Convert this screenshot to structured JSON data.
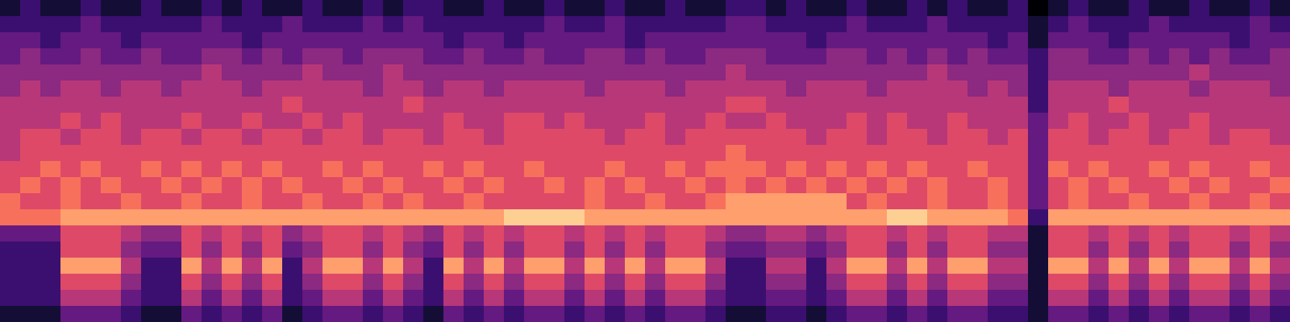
{
  "chart_data": {
    "type": "heatmap",
    "color": "magma",
    "color_range": [
      0,
      10
    ],
    "tick_labels": false,
    "cells": [
      [
        1,
        2,
        1,
        1,
        2,
        1,
        1,
        2,
        1,
        1,
        2,
        1,
        2,
        1,
        1,
        2,
        1,
        1,
        2,
        1,
        2,
        2,
        1,
        1,
        2,
        1,
        1,
        2,
        1,
        1,
        2,
        1,
        1,
        2,
        1,
        1,
        2,
        2,
        1,
        2,
        1,
        1,
        2,
        1,
        1,
        2,
        1,
        2,
        1,
        1,
        2,
        0,
        1,
        2,
        1,
        1,
        2,
        1,
        1,
        2,
        1,
        1,
        2,
        1
      ],
      [
        2,
        2,
        2,
        2,
        3,
        2,
        2,
        2,
        2,
        2,
        3,
        2,
        2,
        2,
        3,
        2,
        2,
        2,
        3,
        2,
        3,
        2,
        2,
        2,
        2,
        2,
        2,
        3,
        2,
        2,
        3,
        2,
        2,
        2,
        2,
        2,
        3,
        3,
        2,
        2,
        2,
        2,
        3,
        2,
        2,
        2,
        3,
        2,
        2,
        2,
        2,
        1,
        2,
        3,
        2,
        2,
        2,
        3,
        2,
        2,
        2,
        2,
        3,
        2
      ],
      [
        3,
        3,
        2,
        3,
        3,
        3,
        2,
        3,
        3,
        3,
        3,
        3,
        2,
        3,
        3,
        3,
        3,
        3,
        3,
        3,
        3,
        3,
        2,
        3,
        3,
        2,
        3,
        3,
        3,
        3,
        3,
        2,
        3,
        3,
        3,
        3,
        3,
        3,
        3,
        3,
        2,
        3,
        3,
        3,
        3,
        3,
        3,
        3,
        3,
        2,
        3,
        1,
        3,
        3,
        3,
        2,
        3,
        3,
        3,
        3,
        3,
        2,
        3,
        3
      ],
      [
        3,
        4,
        3,
        3,
        4,
        3,
        3,
        4,
        3,
        3,
        4,
        4,
        3,
        4,
        3,
        4,
        4,
        3,
        4,
        4,
        4,
        3,
        3,
        4,
        3,
        3,
        4,
        3,
        3,
        4,
        4,
        3,
        4,
        3,
        3,
        4,
        4,
        4,
        3,
        3,
        3,
        4,
        4,
        3,
        4,
        3,
        4,
        3,
        4,
        3,
        3,
        2,
        4,
        4,
        3,
        3,
        4,
        3,
        4,
        3,
        4,
        3,
        3,
        4
      ],
      [
        4,
        4,
        4,
        4,
        4,
        4,
        4,
        4,
        4,
        4,
        5,
        4,
        4,
        4,
        4,
        5,
        4,
        4,
        4,
        5,
        4,
        4,
        4,
        4,
        4,
        4,
        4,
        4,
        4,
        4,
        4,
        4,
        4,
        4,
        4,
        4,
        5,
        4,
        4,
        4,
        4,
        4,
        4,
        4,
        4,
        4,
        5,
        4,
        4,
        4,
        4,
        2,
        4,
        4,
        4,
        4,
        4,
        4,
        4,
        5,
        4,
        4,
        4,
        4
      ],
      [
        4,
        5,
        4,
        5,
        5,
        4,
        5,
        5,
        4,
        5,
        5,
        5,
        4,
        5,
        5,
        5,
        5,
        5,
        4,
        5,
        5,
        4,
        5,
        5,
        4,
        5,
        5,
        5,
        5,
        4,
        5,
        5,
        5,
        4,
        5,
        5,
        5,
        5,
        5,
        4,
        5,
        5,
        5,
        4,
        5,
        5,
        5,
        5,
        4,
        5,
        4,
        2,
        5,
        5,
        5,
        4,
        5,
        5,
        5,
        4,
        5,
        5,
        5,
        4
      ],
      [
        5,
        5,
        5,
        5,
        5,
        5,
        5,
        5,
        5,
        5,
        5,
        5,
        5,
        5,
        6,
        5,
        5,
        5,
        5,
        5,
        6,
        5,
        5,
        5,
        5,
        5,
        5,
        5,
        5,
        5,
        5,
        5,
        5,
        5,
        5,
        5,
        6,
        6,
        5,
        5,
        5,
        5,
        5,
        5,
        5,
        5,
        5,
        5,
        5,
        5,
        5,
        2,
        5,
        5,
        5,
        6,
        5,
        5,
        5,
        5,
        5,
        5,
        5,
        5
      ],
      [
        5,
        5,
        5,
        6,
        5,
        6,
        5,
        5,
        5,
        6,
        5,
        5,
        6,
        5,
        5,
        6,
        5,
        6,
        5,
        5,
        5,
        5,
        6,
        5,
        5,
        6,
        6,
        5,
        6,
        5,
        5,
        5,
        6,
        5,
        5,
        6,
        5,
        5,
        6,
        5,
        5,
        5,
        6,
        5,
        6,
        5,
        5,
        6,
        5,
        5,
        5,
        3,
        5,
        6,
        5,
        5,
        6,
        5,
        5,
        6,
        5,
        5,
        5,
        5
      ],
      [
        5,
        6,
        6,
        5,
        6,
        6,
        5,
        6,
        6,
        5,
        6,
        6,
        5,
        6,
        6,
        5,
        6,
        6,
        5,
        6,
        6,
        5,
        6,
        6,
        5,
        6,
        6,
        6,
        6,
        6,
        5,
        6,
        6,
        5,
        6,
        6,
        6,
        6,
        6,
        6,
        5,
        6,
        6,
        5,
        6,
        6,
        5,
        6,
        6,
        5,
        6,
        3,
        6,
        6,
        5,
        6,
        6,
        5,
        6,
        6,
        5,
        6,
        6,
        5
      ],
      [
        5,
        6,
        6,
        6,
        6,
        6,
        6,
        6,
        6,
        6,
        6,
        6,
        6,
        6,
        6,
        6,
        6,
        6,
        6,
        6,
        6,
        6,
        6,
        6,
        6,
        6,
        6,
        6,
        6,
        6,
        6,
        6,
        6,
        6,
        6,
        6,
        7,
        6,
        6,
        6,
        6,
        6,
        6,
        6,
        6,
        6,
        6,
        6,
        6,
        6,
        6,
        3,
        6,
        6,
        6,
        6,
        6,
        6,
        6,
        6,
        6,
        6,
        6,
        6
      ],
      [
        6,
        6,
        7,
        6,
        7,
        6,
        6,
        7,
        6,
        7,
        6,
        7,
        6,
        7,
        6,
        6,
        7,
        6,
        7,
        6,
        6,
        7,
        6,
        7,
        6,
        6,
        7,
        6,
        6,
        6,
        7,
        6,
        6,
        7,
        6,
        7,
        7,
        7,
        6,
        7,
        6,
        7,
        6,
        7,
        6,
        7,
        6,
        6,
        7,
        6,
        6,
        3,
        7,
        6,
        7,
        6,
        6,
        7,
        6,
        7,
        6,
        6,
        7,
        6
      ],
      [
        6,
        7,
        6,
        7,
        6,
        7,
        6,
        6,
        7,
        6,
        7,
        6,
        7,
        6,
        7,
        6,
        6,
        7,
        6,
        7,
        6,
        6,
        7,
        6,
        7,
        6,
        6,
        7,
        6,
        7,
        6,
        7,
        6,
        6,
        7,
        6,
        7,
        6,
        7,
        6,
        7,
        6,
        7,
        6,
        7,
        6,
        7,
        6,
        6,
        7,
        6,
        3,
        6,
        7,
        6,
        7,
        6,
        6,
        7,
        6,
        7,
        6,
        6,
        7
      ],
      [
        7,
        6,
        6,
        7,
        6,
        6,
        7,
        6,
        6,
        7,
        6,
        6,
        7,
        6,
        6,
        7,
        6,
        6,
        7,
        6,
        7,
        6,
        6,
        7,
        6,
        6,
        6,
        6,
        6,
        7,
        6,
        6,
        7,
        6,
        6,
        7,
        8,
        8,
        8,
        8,
        8,
        8,
        6,
        7,
        6,
        6,
        7,
        6,
        6,
        7,
        6,
        3,
        6,
        7,
        6,
        6,
        7,
        6,
        6,
        7,
        6,
        6,
        7,
        6
      ],
      [
        7,
        7,
        7,
        8,
        8,
        8,
        8,
        8,
        8,
        8,
        8,
        8,
        8,
        8,
        8,
        8,
        8,
        8,
        8,
        8,
        8,
        8,
        8,
        8,
        8,
        9,
        9,
        9,
        9,
        8,
        8,
        8,
        8,
        8,
        8,
        8,
        8,
        8,
        8,
        8,
        8,
        8,
        8,
        8,
        9,
        9,
        8,
        8,
        8,
        8,
        7,
        2,
        8,
        8,
        8,
        8,
        8,
        8,
        8,
        8,
        8,
        8,
        8,
        8
      ],
      [
        3,
        3,
        3,
        6,
        6,
        6,
        5,
        4,
        4,
        6,
        5,
        6,
        5,
        6,
        4,
        5,
        6,
        6,
        5,
        6,
        5,
        4,
        6,
        5,
        6,
        5,
        6,
        6,
        5,
        6,
        5,
        6,
        5,
        6,
        6,
        5,
        4,
        4,
        5,
        5,
        4,
        5,
        6,
        6,
        5,
        6,
        5,
        6,
        6,
        5,
        5,
        1,
        6,
        6,
        5,
        6,
        5,
        6,
        5,
        6,
        6,
        5,
        6,
        5
      ],
      [
        2,
        2,
        2,
        6,
        6,
        6,
        4,
        3,
        3,
        6,
        4,
        6,
        4,
        6,
        3,
        4,
        6,
        6,
        4,
        6,
        4,
        3,
        6,
        4,
        6,
        4,
        6,
        6,
        4,
        6,
        4,
        6,
        4,
        6,
        6,
        4,
        3,
        3,
        4,
        4,
        3,
        4,
        6,
        6,
        4,
        6,
        4,
        6,
        6,
        4,
        4,
        1,
        6,
        6,
        4,
        6,
        4,
        6,
        4,
        6,
        6,
        4,
        6,
        4
      ],
      [
        2,
        2,
        2,
        8,
        8,
        8,
        5,
        2,
        2,
        8,
        5,
        8,
        5,
        8,
        2,
        5,
        8,
        8,
        5,
        8,
        5,
        2,
        8,
        5,
        8,
        5,
        8,
        8,
        5,
        8,
        5,
        8,
        5,
        8,
        8,
        5,
        2,
        2,
        5,
        5,
        2,
        5,
        8,
        8,
        5,
        8,
        5,
        8,
        8,
        5,
        5,
        1,
        8,
        8,
        5,
        8,
        5,
        8,
        5,
        8,
        8,
        5,
        8,
        5
      ],
      [
        2,
        2,
        2,
        6,
        6,
        6,
        4,
        2,
        2,
        6,
        4,
        6,
        4,
        6,
        2,
        4,
        6,
        6,
        4,
        6,
        4,
        2,
        6,
        4,
        6,
        4,
        6,
        6,
        4,
        6,
        4,
        6,
        4,
        6,
        6,
        4,
        2,
        2,
        4,
        4,
        2,
        4,
        6,
        6,
        4,
        6,
        4,
        6,
        6,
        4,
        4,
        1,
        6,
        6,
        4,
        6,
        4,
        6,
        4,
        6,
        6,
        4,
        6,
        4
      ],
      [
        2,
        2,
        2,
        5,
        5,
        5,
        3,
        2,
        2,
        5,
        3,
        5,
        3,
        5,
        2,
        3,
        5,
        5,
        3,
        5,
        3,
        2,
        5,
        3,
        5,
        3,
        5,
        5,
        3,
        5,
        3,
        5,
        3,
        5,
        5,
        3,
        2,
        2,
        3,
        3,
        2,
        3,
        5,
        5,
        3,
        5,
        3,
        5,
        5,
        3,
        3,
        1,
        5,
        5,
        3,
        5,
        3,
        5,
        3,
        5,
        5,
        3,
        5,
        3
      ],
      [
        1,
        1,
        1,
        3,
        3,
        3,
        2,
        1,
        1,
        3,
        2,
        3,
        2,
        3,
        1,
        2,
        3,
        3,
        2,
        3,
        2,
        1,
        3,
        2,
        3,
        2,
        3,
        3,
        2,
        3,
        2,
        3,
        2,
        3,
        3,
        2,
        1,
        1,
        2,
        2,
        1,
        2,
        3,
        3,
        2,
        3,
        2,
        3,
        3,
        2,
        2,
        1,
        3,
        3,
        2,
        3,
        2,
        3,
        2,
        3,
        3,
        2,
        3,
        2
      ]
    ]
  }
}
